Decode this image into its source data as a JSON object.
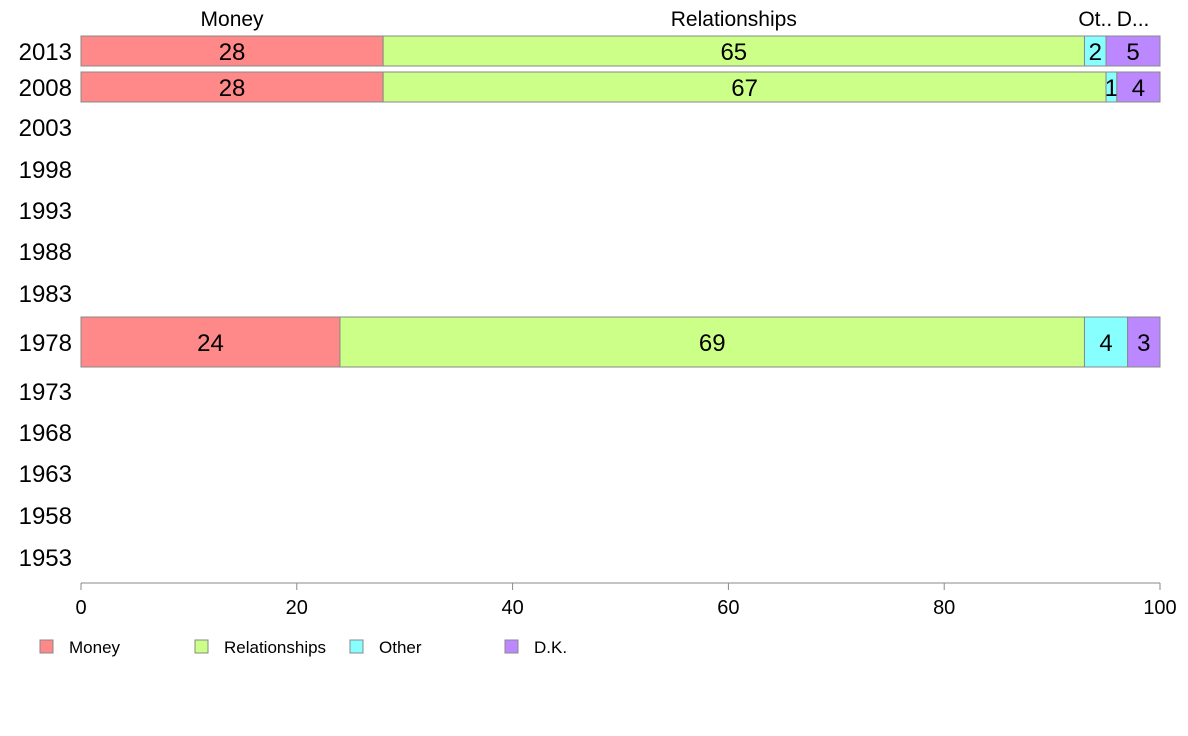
{
  "chart_data": {
    "type": "bar",
    "orientation": "horizontal",
    "stacked": true,
    "categories": [
      "2013",
      "2008",
      "2003",
      "1998",
      "1993",
      "1988",
      "1983",
      "1978",
      "1973",
      "1968",
      "1963",
      "1958",
      "1953"
    ],
    "series": [
      {
        "name": "Money",
        "color": "#FF8888",
        "values": [
          28,
          28,
          null,
          null,
          null,
          null,
          null,
          24,
          null,
          null,
          null,
          null,
          null
        ]
      },
      {
        "name": "Relationships",
        "color": "#CCFF88",
        "values": [
          65,
          67,
          null,
          null,
          null,
          null,
          null,
          69,
          null,
          null,
          null,
          null,
          null
        ]
      },
      {
        "name": "Other",
        "color": "#88FFFF",
        "values": [
          2,
          1,
          null,
          null,
          null,
          null,
          null,
          4,
          null,
          null,
          null,
          null,
          null
        ]
      },
      {
        "name": "D.K.",
        "color": "#BB88FF",
        "values": [
          5,
          4,
          null,
          null,
          null,
          null,
          null,
          3,
          null,
          null,
          null,
          null,
          null
        ]
      }
    ],
    "column_headers": [
      "Money",
      "Relationships",
      "Ot..",
      "D..."
    ],
    "xlim": [
      0,
      100
    ],
    "xticks": [
      "0",
      "20",
      "40",
      "60",
      "80",
      "100"
    ],
    "grid": false,
    "legend_position": "bottom-left"
  }
}
